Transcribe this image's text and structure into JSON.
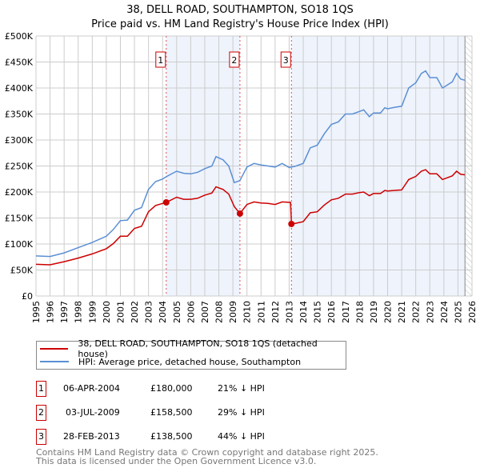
{
  "title": "38, DELL ROAD, SOUTHAMPTON, SO18 1QS",
  "subtitle": "Price paid vs. HM Land Registry's House Price Index (HPI)",
  "chart_data": {
    "type": "line",
    "title": "38, DELL ROAD, SOUTHAMPTON, SO18 1QS",
    "subtitle": "Price paid vs. HM Land Registry's House Price Index (HPI)",
    "xlim": [
      1995,
      2026
    ],
    "ylim": [
      0,
      500000
    ],
    "grid": true,
    "xticks": [
      "1995",
      "1996",
      "1997",
      "1998",
      "1999",
      "2000",
      "2001",
      "2002",
      "2003",
      "2004",
      "2005",
      "2006",
      "2007",
      "2008",
      "2009",
      "2010",
      "2011",
      "2012",
      "2013",
      "2014",
      "2015",
      "2016",
      "2017",
      "2018",
      "2019",
      "2020",
      "2021",
      "2022",
      "2023",
      "2024",
      "2025",
      "2026"
    ],
    "yticks": [
      {
        "v": 0,
        "label": "£0"
      },
      {
        "v": 50000,
        "label": "£50K"
      },
      {
        "v": 100000,
        "label": "£100K"
      },
      {
        "v": 150000,
        "label": "£150K"
      },
      {
        "v": 200000,
        "label": "£200K"
      },
      {
        "v": 250000,
        "label": "£250K"
      },
      {
        "v": 300000,
        "label": "£300K"
      },
      {
        "v": 350000,
        "label": "£350K"
      },
      {
        "v": 400000,
        "label": "£400K"
      },
      {
        "v": 450000,
        "label": "£450K"
      },
      {
        "v": 500000,
        "label": "£500K"
      }
    ],
    "shaded_ranges": [
      [
        2004.26,
        2009.5
      ],
      [
        2013.16,
        2025.5
      ]
    ],
    "hatched_from": 2025.5,
    "series": [
      {
        "name": "38, DELL ROAD, SOUTHAMPTON, SO18 1QS (detached house)",
        "color": "#cc0000",
        "x": [
          1995,
          1996,
          1997,
          1998,
          1999,
          2000,
          2000.5,
          2001,
          2001.5,
          2002,
          2002.5,
          2003,
          2003.5,
          2004,
          2004.26,
          2005,
          2005.5,
          2006,
          2006.5,
          2007,
          2007.5,
          2007.8,
          2008.3,
          2008.7,
          2009.1,
          2009.5,
          2010,
          2010.5,
          2011,
          2011.5,
          2012,
          2012.5,
          2013.1,
          2013.16,
          2013.5,
          2014,
          2014.5,
          2015,
          2015.5,
          2016,
          2016.5,
          2017,
          2017.5,
          2018,
          2018.3,
          2018.7,
          2019,
          2019.5,
          2019.8,
          2020,
          2020.5,
          2021,
          2021.5,
          2022,
          2022.4,
          2022.7,
          2023,
          2023.5,
          2023.9,
          2024.2,
          2024.6,
          2024.9,
          2025.2,
          2025.5
        ],
        "values": [
          61000,
          60000,
          66000,
          73000,
          81000,
          91000,
          101000,
          115000,
          115000,
          130000,
          134000,
          162000,
          174000,
          178000,
          180000,
          190000,
          186000,
          186000,
          188000,
          194000,
          198000,
          210000,
          205000,
          196000,
          172000,
          158500,
          176000,
          181000,
          179000,
          178000,
          176000,
          181000,
          180000,
          138500,
          140000,
          143000,
          160000,
          162000,
          175000,
          185000,
          188000,
          196000,
          196000,
          199000,
          200000,
          193000,
          197000,
          197000,
          203000,
          202000,
          203000,
          204000,
          224000,
          230000,
          240000,
          243000,
          235000,
          235000,
          224000,
          227000,
          231000,
          240000,
          234000,
          233000
        ]
      },
      {
        "name": "HPI: Average price, detached house, Southampton",
        "color": "#5b8fd4",
        "x": [
          1995,
          1996,
          1997,
          1998,
          1999,
          2000,
          2000.5,
          2001,
          2001.5,
          2002,
          2002.5,
          2003,
          2003.5,
          2004,
          2004.3,
          2005,
          2005.5,
          2006,
          2006.5,
          2007,
          2007.5,
          2007.8,
          2008.3,
          2008.7,
          2009.1,
          2009.5,
          2010,
          2010.5,
          2011,
          2011.5,
          2012,
          2012.5,
          2013,
          2013.5,
          2014,
          2014.5,
          2015,
          2015.5,
          2016,
          2016.5,
          2017,
          2017.5,
          2018,
          2018.3,
          2018.7,
          2019,
          2019.5,
          2019.8,
          2020,
          2020.5,
          2021,
          2021.5,
          2022,
          2022.4,
          2022.7,
          2023,
          2023.5,
          2023.9,
          2024.2,
          2024.6,
          2024.9,
          2025.2,
          2025.5
        ],
        "values": [
          77000,
          76000,
          83000,
          93000,
          103000,
          115000,
          128000,
          145000,
          146000,
          165000,
          170000,
          205000,
          220000,
          225000,
          230000,
          240000,
          236000,
          235000,
          238000,
          245000,
          250000,
          268000,
          262000,
          250000,
          218000,
          222000,
          248000,
          255000,
          252000,
          250000,
          248000,
          255000,
          247000,
          250000,
          255000,
          285000,
          290000,
          312000,
          330000,
          335000,
          350000,
          350000,
          355000,
          358000,
          345000,
          352000,
          352000,
          362000,
          360000,
          363000,
          365000,
          400000,
          410000,
          428000,
          433000,
          420000,
          420000,
          400000,
          405000,
          412000,
          428000,
          417000,
          415000
        ]
      }
    ],
    "annotations": [
      {
        "label": "1",
        "x": 2004.26,
        "y": 180000
      },
      {
        "label": "2",
        "x": 2009.5,
        "y": 158500
      },
      {
        "label": "3",
        "x": 2013.16,
        "y": 138500
      }
    ]
  },
  "legend": {
    "property": "38, DELL ROAD, SOUTHAMPTON, SO18 1QS (detached house)",
    "hpi": "HPI: Average price, detached house, Southampton"
  },
  "sales": [
    {
      "num": "1",
      "date": "06-APR-2004",
      "price": "£180,000",
      "hpi": "21% ↓ HPI"
    },
    {
      "num": "2",
      "date": "03-JUL-2009",
      "price": "£158,500",
      "hpi": "29% ↓ HPI"
    },
    {
      "num": "3",
      "date": "28-FEB-2013",
      "price": "£138,500",
      "hpi": "44% ↓ HPI"
    }
  ],
  "footer": {
    "line1": "Contains HM Land Registry data © Crown copyright and database right 2025.",
    "line2": "This data is licensed under the Open Government Licence v3.0."
  }
}
